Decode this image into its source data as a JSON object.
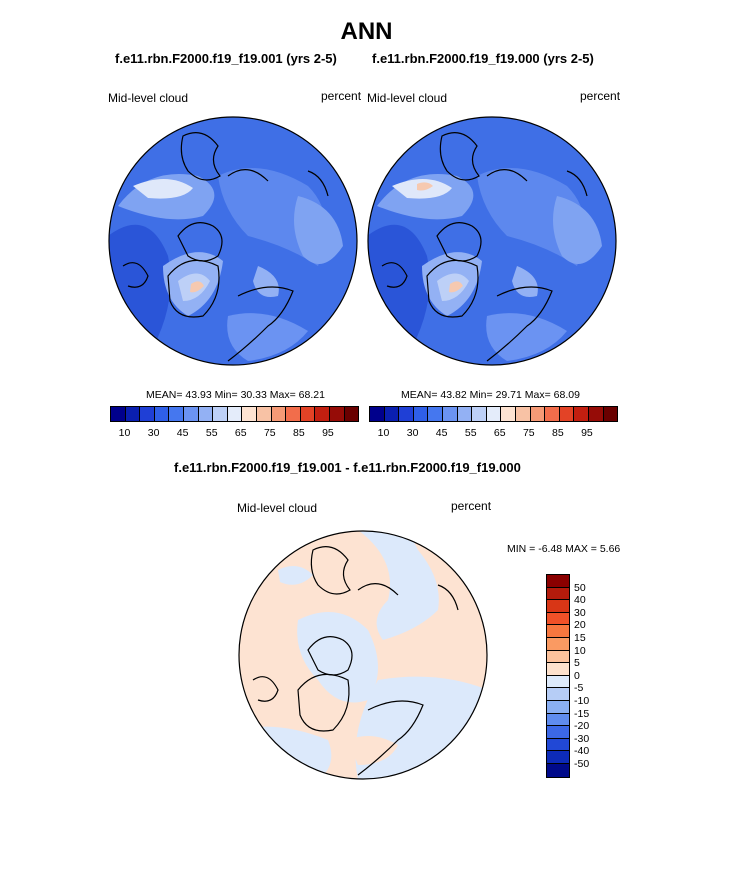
{
  "title": "ANN",
  "panels": [
    {
      "case_title": "f.e11.rbn.F2000.f19_f19.001 (yrs 2-5)",
      "variable": "Mid-level cloud",
      "units": "percent",
      "mean_label": "MEAN=",
      "mean": "43.93",
      "min_label": "Min=",
      "min": "30.33",
      "max_label": "Max=",
      "max": "68.21"
    },
    {
      "case_title": "f.e11.rbn.F2000.f19_f19.000 (yrs 2-5)",
      "variable": "Mid-level cloud",
      "units": "percent",
      "mean_label": "MEAN=",
      "mean": "43.82",
      "min_label": "Min=",
      "min": "29.71",
      "max_label": "Max=",
      "max": "68.09"
    }
  ],
  "field_colorbar": {
    "colors": [
      "#00008c",
      "#0a1fb0",
      "#1f3fd6",
      "#2f5fe8",
      "#4577ef",
      "#6b93f2",
      "#93b1f4",
      "#bdd0f7",
      "#e4ecfa",
      "#fde3d2",
      "#f8c2a5",
      "#f59a76",
      "#f26d4b",
      "#e34326",
      "#c21f10",
      "#960c07",
      "#6a0000"
    ],
    "tick_labels": [
      "10",
      "30",
      "45",
      "55",
      "65",
      "75",
      "85",
      "95"
    ]
  },
  "diff": {
    "title": "f.e11.rbn.F2000.f19_f19.001 - f.e11.rbn.F2000.f19_f19.000",
    "variable": "Mid-level cloud",
    "units": "percent",
    "min_label": "MIN =",
    "min": "-6.48",
    "max_label": "MAX =",
    "max": "5.66",
    "colorbar": {
      "colors": [
        "#8a0000",
        "#b31b0c",
        "#d83616",
        "#f05128",
        "#f7773f",
        "#fa9a62",
        "#fcc29c",
        "#fde1cc",
        "#ddeafb",
        "#b6cdf6",
        "#8aaff3",
        "#5f8cef",
        "#3c68e6",
        "#2148d6",
        "#0d2bb8",
        "#000a8a"
      ],
      "tick_labels": [
        "50",
        "40",
        "30",
        "20",
        "15",
        "10",
        "5",
        "0",
        "-5",
        "-10",
        "-15",
        "-20",
        "-30",
        "-40",
        "-50"
      ]
    }
  }
}
